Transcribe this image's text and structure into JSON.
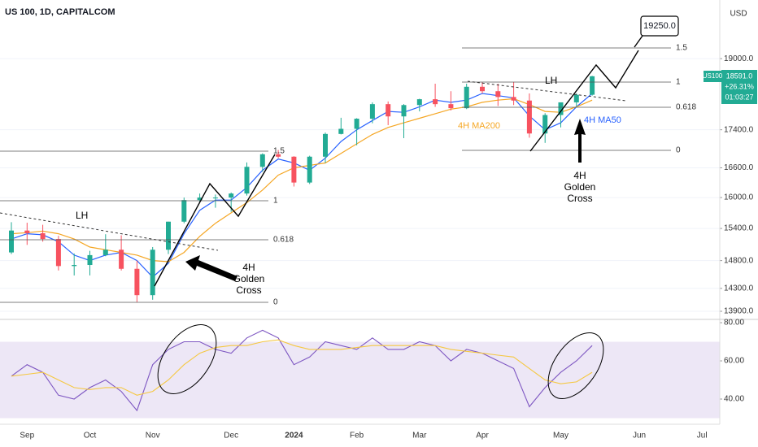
{
  "chart_data": [
    {
      "type": "candlestick",
      "title": "US 100, 1D, CAPITALCOM",
      "currency": "USD",
      "symbol": "US100",
      "price_label": "18591.0",
      "change_label": "+26.31%",
      "countdown": "01:03:27",
      "log": true,
      "grid": true,
      "up_color": "#22ab94",
      "down_color": "#f7525f",
      "ylim": [
        13775,
        20430
      ],
      "yticks": [
        {
          "value": 19000,
          "label": "19000.0"
        },
        {
          "value": 17400,
          "label": "17400.0"
        },
        {
          "value": 16600,
          "label": "16600.0"
        },
        {
          "value": 16000,
          "label": "16000.0"
        },
        {
          "value": 15400,
          "label": "15400.0"
        },
        {
          "value": 14800,
          "label": "14800.0"
        },
        {
          "value": 14300,
          "label": "14300.0"
        },
        {
          "value": 13900,
          "label": "13900.0"
        }
      ],
      "open": [
        14950,
        15360,
        15310,
        15200,
        14700,
        14720,
        14900,
        15000,
        14650,
        14180,
        15000,
        15530,
        15950,
        16000,
        16000,
        16080,
        16620,
        16880,
        16830,
        16300,
        16830,
        17310,
        17420,
        17640,
        17960,
        17690,
        17940,
        18070,
        17960,
        17870,
        18350,
        18250,
        18120,
        18040,
        17320,
        17720,
        18000,
        18170,
        null,
        null,
        null,
        null,
        null,
        null,
        null,
        null
      ],
      "high": [
        15520,
        15510,
        15470,
        15260,
        14930,
        14980,
        15290,
        15270,
        14800,
        15050,
        15530,
        16000,
        16080,
        16060,
        16100,
        16710,
        16900,
        16970,
        16840,
        16850,
        17340,
        17660,
        17650,
        18000,
        18020,
        17960,
        18080,
        18420,
        18250,
        18420,
        18450,
        18420,
        18460,
        18200,
        17760,
        18000,
        18200,
        18600,
        null,
        null,
        null,
        null,
        null,
        null,
        null,
        null
      ],
      "low": [
        14920,
        15090,
        15150,
        14620,
        14530,
        14530,
        14880,
        14620,
        14060,
        14100,
        14920,
        15500,
        15900,
        15800,
        15720,
        16040,
        16520,
        16800,
        16220,
        16270,
        16700,
        17300,
        17070,
        17540,
        17500,
        17220,
        17800,
        17900,
        17820,
        17850,
        18200,
        17920,
        17940,
        17230,
        17120,
        17450,
        17900,
        18150,
        null,
        null,
        null,
        null,
        null,
        null,
        null,
        null
      ],
      "close": [
        15360,
        15310,
        15200,
        14700,
        14720,
        14900,
        15000,
        14650,
        14180,
        15000,
        15530,
        15950,
        16000,
        16000,
        16080,
        16620,
        16880,
        16830,
        16300,
        16830,
        17310,
        17420,
        17640,
        17960,
        17690,
        17940,
        18070,
        17960,
        17870,
        18350,
        18250,
        18120,
        18040,
        17320,
        17720,
        18000,
        18170,
        18591,
        null,
        null,
        null,
        null,
        null,
        null,
        null,
        null
      ],
      "series": [
        {
          "name": "4H MA50",
          "color": "#2962ff",
          "values": [
            15200,
            15300,
            15280,
            15150,
            14900,
            14800,
            14900,
            14950,
            14800,
            14500,
            14750,
            15300,
            15750,
            15950,
            15950,
            16200,
            16550,
            16780,
            16700,
            16550,
            16800,
            17150,
            17400,
            17600,
            17800,
            17780,
            17900,
            18050,
            18000,
            18050,
            18200,
            18150,
            18100,
            17700,
            17400,
            17550,
            17900,
            18200,
            null,
            null,
            null,
            null,
            null,
            null,
            null,
            null
          ]
        },
        {
          "name": "4H MA200",
          "color": "#f5a623",
          "values": [
            15300,
            15320,
            15350,
            15300,
            15200,
            15050,
            15000,
            14950,
            14900,
            14800,
            14780,
            14950,
            15250,
            15500,
            15700,
            15900,
            16150,
            16450,
            16600,
            16650,
            16700,
            16900,
            17100,
            17300,
            17450,
            17550,
            17650,
            17750,
            17850,
            17900,
            18000,
            18050,
            18080,
            17950,
            17800,
            17780,
            17900,
            18050,
            null,
            null,
            null,
            null,
            null,
            null,
            null,
            null
          ]
        }
      ],
      "annotations": {
        "lh": "LH",
        "golden_cross": [
          "4H",
          "Golden",
          "Cross"
        ],
        "target": "19250.0",
        "fib_left": [
          "1.5",
          "1",
          "0.618",
          "0"
        ],
        "fib_right": [
          "1.5",
          "1",
          "0.618",
          "0"
        ]
      }
    },
    {
      "type": "line",
      "grid": false,
      "band": [
        30,
        70
      ],
      "band_color": "#ede7f6",
      "categories": [
        null,
        "Sep",
        null,
        null,
        null,
        "Oct",
        null,
        null,
        null,
        "Nov",
        null,
        null,
        null,
        null,
        "Dec",
        null,
        null,
        null,
        "2024",
        null,
        null,
        null,
        "Feb",
        null,
        null,
        null,
        "Mar",
        null,
        null,
        null,
        "Apr",
        null,
        null,
        null,
        null,
        "May",
        null,
        null,
        null,
        null,
        "Jun",
        null,
        null,
        null,
        "Jul",
        null
      ],
      "ylim": [
        26.8,
        81.3
      ],
      "yticks": [
        {
          "value": 80,
          "label": "80.00"
        },
        {
          "value": 60,
          "label": "60.00"
        },
        {
          "value": 40,
          "label": "40.00"
        }
      ],
      "series": [
        {
          "color": "#7e57c2",
          "values": [
            52,
            58,
            54,
            42,
            40,
            46,
            50,
            44,
            34,
            58,
            66,
            70,
            70,
            66,
            64,
            72,
            76,
            72,
            58,
            62,
            70,
            68,
            66,
            72,
            66,
            66,
            70,
            68,
            60,
            66,
            64,
            60,
            56,
            36,
            46,
            54,
            60,
            68,
            null,
            null,
            null,
            null,
            null,
            null,
            null,
            null
          ]
        },
        {
          "color": "#f5c842",
          "values": [
            52,
            53,
            54,
            50,
            46,
            45,
            46,
            46,
            42,
            44,
            50,
            58,
            64,
            67,
            68,
            68,
            70,
            71,
            68,
            66,
            66,
            66,
            67,
            68,
            68,
            68,
            68,
            68,
            66,
            65,
            64,
            63,
            62,
            56,
            50,
            48,
            49,
            54,
            null,
            null,
            null,
            null,
            null,
            null,
            null,
            null
          ]
        }
      ]
    }
  ]
}
